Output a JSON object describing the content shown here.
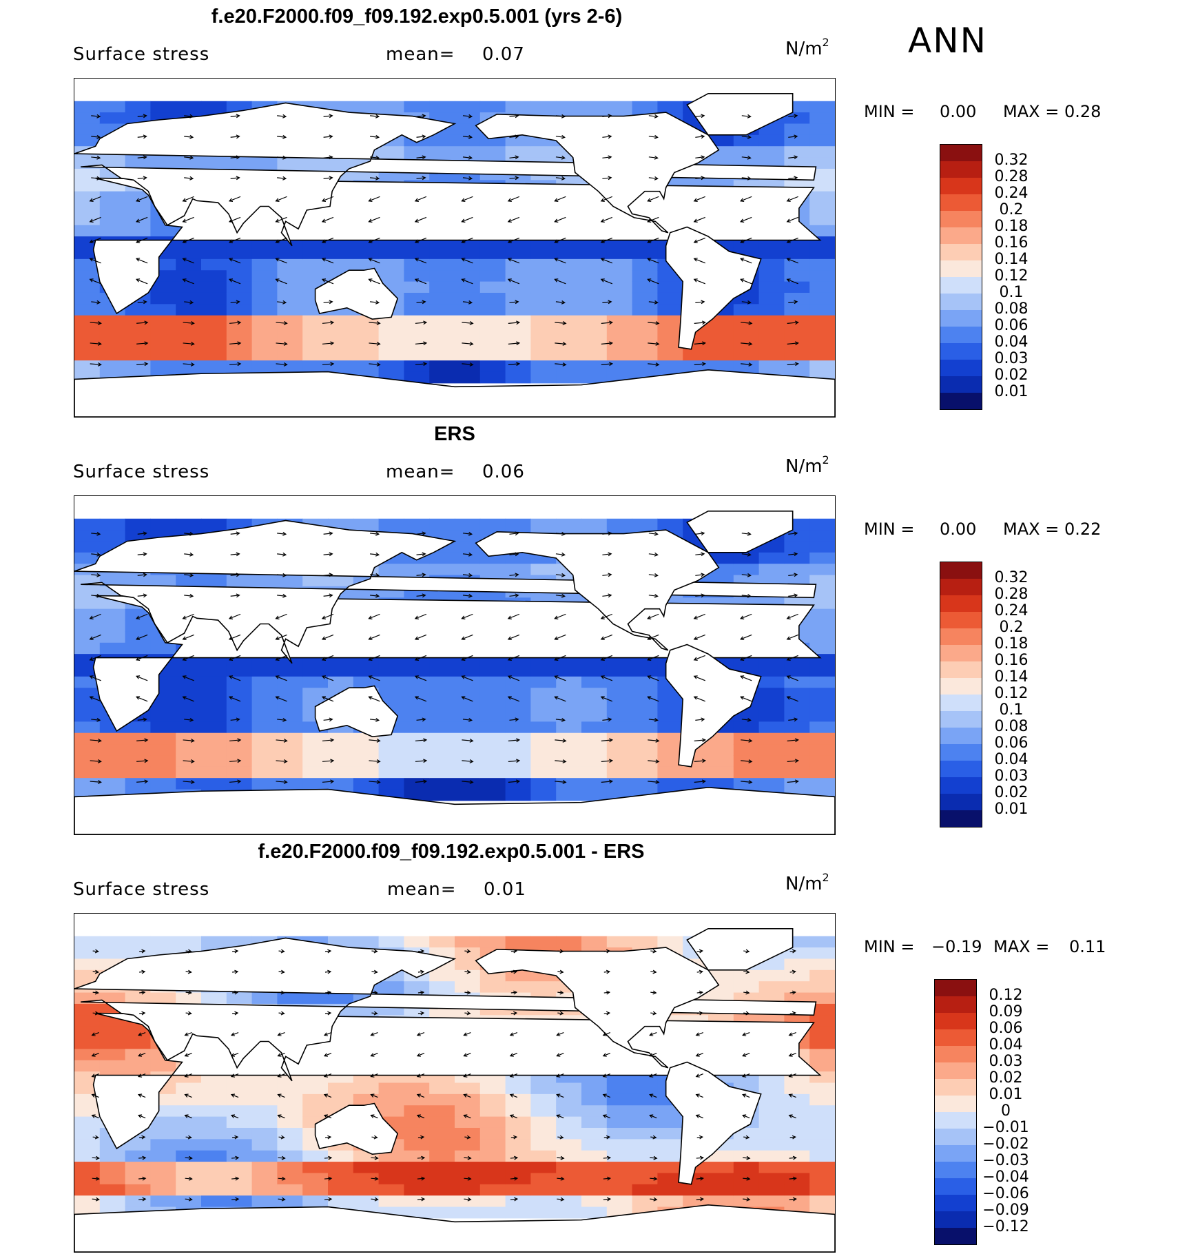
{
  "season": "ANN",
  "palette_seq": [
    "#08106b",
    "#0a2cb0",
    "#1340d0",
    "#2a5fe6",
    "#4d82f0",
    "#7aa4f5",
    "#a6c3f7",
    "#cfdffa",
    "#fbe8dc",
    "#fdcdb4",
    "#fba98a",
    "#f6845f",
    "#ec5a35",
    "#d8361b",
    "#b71f12",
    "#8a1010"
  ],
  "palette_div": [
    "#08106b",
    "#0a2cb0",
    "#1340d0",
    "#2a5fe6",
    "#4d82f0",
    "#7aa4f5",
    "#a6c3f7",
    "#cfdffa",
    "#fbe8dc",
    "#fdcdb4",
    "#fba98a",
    "#f6845f",
    "#ec5a35",
    "#d8361b",
    "#b71f12",
    "#8a1010"
  ],
  "panels": [
    {
      "title": "f.e20.F2000.f09_f09.192.exp0.5.001 (yrs 2-6)",
      "field": "Surface stress",
      "mean_label": "mean=",
      "mean": "0.07",
      "units": "N/m",
      "units_sup": "2",
      "min_label": "MIN =",
      "min": "0.00",
      "max_label": "MAX =",
      "max": "0.28",
      "colorbar_labels": [
        "0.32",
        "0.28",
        "0.24",
        "0.2",
        "0.18",
        "0.16",
        "0.14",
        "0.12",
        "0.1",
        "0.08",
        "0.06",
        "0.04",
        "0.03",
        "0.02",
        "0.01"
      ]
    },
    {
      "title": "ERS",
      "field": "Surface stress",
      "mean_label": "mean=",
      "mean": "0.06",
      "units": "N/m",
      "units_sup": "2",
      "min_label": "MIN =",
      "min": "0.00",
      "max_label": "MAX =",
      "max": "0.22",
      "colorbar_labels": [
        "0.32",
        "0.28",
        "0.24",
        "0.2",
        "0.18",
        "0.16",
        "0.14",
        "0.12",
        "0.1",
        "0.08",
        "0.06",
        "0.04",
        "0.03",
        "0.02",
        "0.01"
      ]
    },
    {
      "title": "f.e20.F2000.f09_f09.192.exp0.5.001 - ERS",
      "field": "Surface stress",
      "mean_label": "mean=",
      "mean": "0.01",
      "units": "N/m",
      "units_sup": "2",
      "min_label": "MIN =",
      "min": "−0.19",
      "max_label": "MAX =",
      "max": "0.11",
      "colorbar_labels": [
        "0.12",
        "0.09",
        "0.06",
        "0.04",
        "0.03",
        "0.02",
        "0.01",
        "0",
        "−0.01",
        "−0.02",
        "−0.03",
        "−0.04",
        "−0.06",
        "−0.09",
        "−0.12"
      ]
    }
  ],
  "chart_data": [
    {
      "type": "heatmap",
      "title": "f.e20.F2000.f09_f09.192.exp0.5.001 (yrs 2-6)",
      "subtitle": "Surface stress",
      "mean": 0.07,
      "units": "N/m2",
      "min": 0.0,
      "max": 0.28,
      "levels": [
        0.01,
        0.02,
        0.03,
        0.04,
        0.06,
        0.08,
        0.1,
        0.12,
        0.14,
        0.16,
        0.18,
        0.2,
        0.24,
        0.28,
        0.32
      ]
    },
    {
      "type": "heatmap",
      "title": "ERS",
      "subtitle": "Surface stress",
      "mean": 0.06,
      "units": "N/m2",
      "min": 0.0,
      "max": 0.22,
      "levels": [
        0.01,
        0.02,
        0.03,
        0.04,
        0.06,
        0.08,
        0.1,
        0.12,
        0.14,
        0.16,
        0.18,
        0.2,
        0.24,
        0.28,
        0.32
      ]
    },
    {
      "type": "heatmap",
      "title": "f.e20.F2000.f09_f09.192.exp0.5.001 - ERS",
      "subtitle": "Surface stress",
      "mean": 0.01,
      "units": "N/m2",
      "min": -0.19,
      "max": 0.11,
      "levels": [
        -0.12,
        -0.09,
        -0.06,
        -0.04,
        -0.03,
        -0.02,
        -0.01,
        0,
        0.01,
        0.02,
        0.03,
        0.04,
        0.06,
        0.09,
        0.12
      ]
    }
  ]
}
